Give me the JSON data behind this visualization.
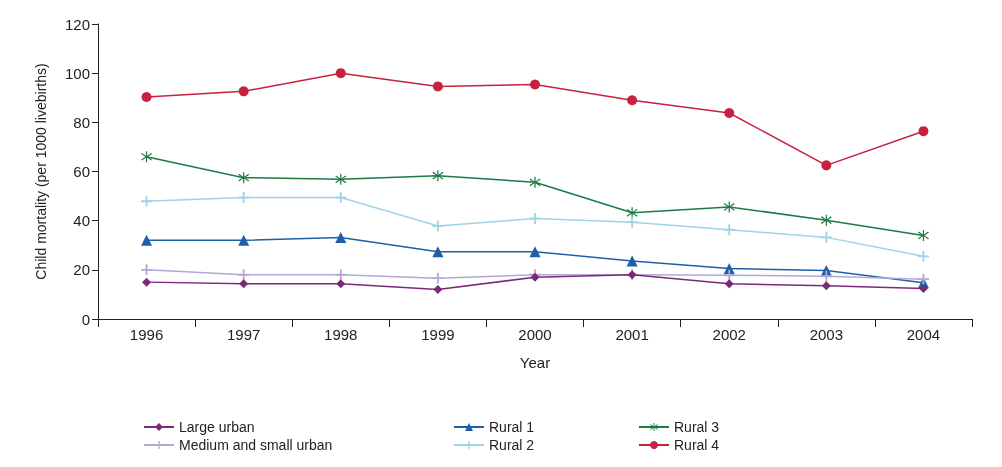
{
  "chart_data": {
    "type": "line",
    "xlabel": "Year",
    "ylabel": "Child mortality (per 1000 livebirths)",
    "categories": [
      "1996",
      "1997",
      "1998",
      "1999",
      "2000",
      "2001",
      "2002",
      "2003",
      "2004"
    ],
    "ylim": [
      0,
      120
    ],
    "yticks": [
      0,
      20,
      40,
      60,
      80,
      100,
      120
    ],
    "grid": false,
    "legend": "bottom",
    "line_style": "solid",
    "series": [
      {
        "name": "Large urban",
        "color": "#7b2a78",
        "marker": "diamond",
        "values": [
          15,
          14.3,
          14.3,
          12,
          17,
          18,
          14.3,
          13.5,
          12.4
        ]
      },
      {
        "name": "Medium and small urban",
        "color": "#b3a8d8",
        "marker": "cross",
        "values": [
          20,
          18,
          18,
          16.6,
          18,
          18,
          17.8,
          17.4,
          16.2
        ]
      },
      {
        "name": "Rural 1",
        "color": "#1f5fa8",
        "marker": "triangle",
        "values": [
          32,
          32,
          33.2,
          27.4,
          27.4,
          23.6,
          20.5,
          19.7,
          14.7
        ]
      },
      {
        "name": "Rural 2",
        "color": "#9fd3e8",
        "marker": "cross",
        "values": [
          47.9,
          49.4,
          49.4,
          37.8,
          40.9,
          39.4,
          36.3,
          33.2,
          25.5
        ]
      },
      {
        "name": "Rural 3",
        "color": "#1e7a45",
        "marker": "star",
        "values": [
          66,
          57.5,
          56.8,
          58.3,
          55.6,
          43.2,
          45.6,
          40.2,
          34
        ]
      },
      {
        "name": "Rural 4",
        "color": "#c8203f",
        "marker": "circle",
        "values": [
          90.3,
          92.6,
          100,
          94.6,
          95.4,
          89,
          83.8,
          62.5,
          76.4
        ]
      }
    ]
  }
}
